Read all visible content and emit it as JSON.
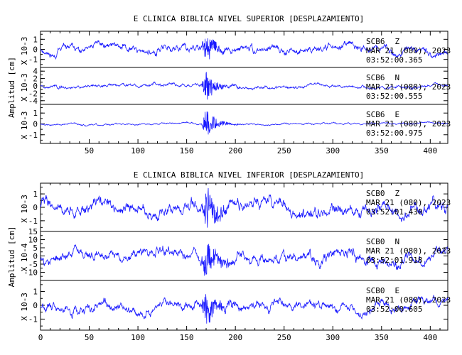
{
  "colors": {
    "trace": "#1a1aff",
    "axis": "#000000",
    "background": "#ffffff"
  },
  "chart_data": [
    {
      "type": "line",
      "title": "E CLINICA BIBLICA NIVEL SUPERIOR [DESPLAZAMIENTO]",
      "ylabel": "Amplitud [cm]",
      "xlim": [
        0,
        418
      ],
      "xticks": [
        50,
        100,
        150,
        200,
        250,
        300,
        350,
        400
      ],
      "traces": [
        {
          "station": "SCB6",
          "comp": "Z",
          "date": "MAR 21 (080), 2023",
          "time": "03:52:00.365",
          "scale": "X 10-3",
          "ylim": [
            -1.8,
            1.8
          ],
          "yticks": [
            -1,
            0,
            1
          ],
          "amp": 0.45,
          "quake_amp": 1.5,
          "seed": 11
        },
        {
          "station": "SCB6",
          "comp": "N",
          "date": "MAR 21 (080), 2023",
          "time": "03:52:00.555",
          "scale": "X 10-3",
          "ylim": [
            -5,
            5
          ],
          "yticks": [
            -4,
            -2,
            0,
            2,
            4
          ],
          "amp": 0.55,
          "quake_amp": 4.0,
          "seed": 23
        },
        {
          "station": "SCB6",
          "comp": "E",
          "date": "MAR 21 (080), 2023",
          "time": "03:52:00.975",
          "scale": "X 10-3",
          "ylim": [
            -1.8,
            1.8
          ],
          "yticks": [
            -1,
            0,
            1
          ],
          "amp": 0.1,
          "quake_amp": 1.4,
          "seed": 37
        }
      ]
    },
    {
      "type": "line",
      "title": "E CLINICA BIBLICA NIVEL INFERIOR [DESPLAZAMIENTO]",
      "ylabel": "Amplitud [cm]",
      "xlim": [
        0,
        418
      ],
      "xticks": [
        0,
        50,
        100,
        150,
        200,
        250,
        300,
        350,
        400
      ],
      "traces": [
        {
          "station": "SCB0",
          "comp": "Z",
          "date": "MAR 21 (080), 2023",
          "time": "03:52:01.430",
          "scale": "X 10-3",
          "ylim": [
            -1.8,
            1.8
          ],
          "yticks": [
            -1,
            0,
            1
          ],
          "amp": 0.6,
          "quake_amp": 1.7,
          "seed": 41
        },
        {
          "station": "SCB0",
          "comp": "N",
          "date": "MAR 21 (080), 2023",
          "time": "03:52:01.918",
          "scale": "X 10-4",
          "ylim": [
            -15,
            15
          ],
          "yticks": [
            -10,
            -5,
            0,
            5,
            10,
            15
          ],
          "amp": 4.5,
          "quake_amp": 13,
          "seed": 53
        },
        {
          "station": "SCB0",
          "comp": "E",
          "date": "MAR 21 (080), 2023",
          "time": "03:52:00.605",
          "scale": "X 10-3",
          "ylim": [
            -1.8,
            1.8
          ],
          "yticks": [
            -1,
            0,
            1
          ],
          "amp": 0.45,
          "quake_amp": 1.4,
          "seed": 67
        }
      ]
    }
  ]
}
